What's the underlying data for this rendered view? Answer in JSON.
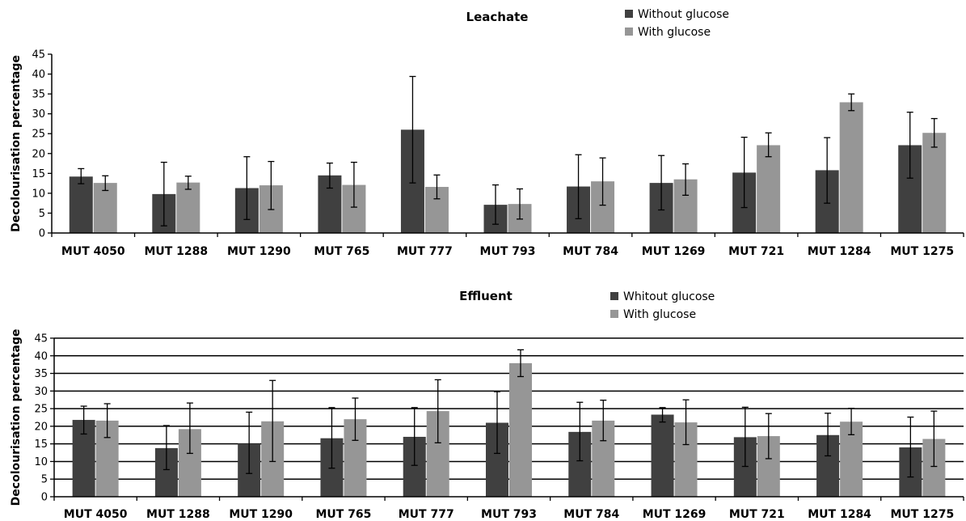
{
  "chart_data": [
    {
      "type": "bar",
      "title": "Leachate",
      "xlabel": "",
      "ylabel": "Decolourisation percentage",
      "ylim": [
        0,
        45
      ],
      "yticks": [
        0,
        5,
        10,
        15,
        20,
        25,
        30,
        35,
        40,
        45
      ],
      "grid": false,
      "legend_position": "top-right",
      "categories": [
        "MUT 4050",
        "MUT 1288",
        "MUT 1290",
        "MUT 765",
        "MUT 777",
        "MUT 793",
        "MUT 784",
        "MUT 1269",
        "MUT 721",
        "MUT 1284",
        "MUT 1275"
      ],
      "series": [
        {
          "name": "Without glucose",
          "color": "#404040",
          "values": [
            14.2,
            9.8,
            11.3,
            14.5,
            26.0,
            7.1,
            11.7,
            12.6,
            15.2,
            15.8,
            22.1
          ],
          "error_bars": [
            [
              12.4,
              16.2
            ],
            [
              1.8,
              17.8
            ],
            [
              3.4,
              19.2
            ],
            [
              11.3,
              17.6
            ],
            [
              12.6,
              39.4
            ],
            [
              2.2,
              12.1
            ],
            [
              3.6,
              19.7
            ],
            [
              5.8,
              19.5
            ],
            [
              6.4,
              24.1
            ],
            [
              7.5,
              24.0
            ],
            [
              13.8,
              30.4
            ]
          ]
        },
        {
          "name": "With glucose",
          "color": "#969696",
          "values": [
            12.6,
            12.7,
            12.0,
            12.1,
            11.6,
            7.3,
            13.0,
            13.5,
            22.1,
            32.9,
            25.2
          ],
          "error_bars": [
            [
              10.7,
              14.4
            ],
            [
              11.0,
              14.3
            ],
            [
              5.9,
              18.0
            ],
            [
              6.5,
              17.8
            ],
            [
              8.6,
              14.6
            ],
            [
              3.5,
              11.1
            ],
            [
              7.0,
              18.9
            ],
            [
              9.5,
              17.4
            ],
            [
              19.2,
              25.2
            ],
            [
              30.8,
              35.0
            ],
            [
              21.6,
              28.8
            ]
          ]
        }
      ]
    },
    {
      "type": "bar",
      "title": "Effluent",
      "xlabel": "",
      "ylabel": "Decolourisation percentage",
      "ylim": [
        0,
        45
      ],
      "yticks": [
        0,
        5,
        10,
        15,
        20,
        25,
        30,
        35,
        40,
        45
      ],
      "grid": true,
      "legend_position": "top-right",
      "categories": [
        "MUT 4050",
        "MUT 1288",
        "MUT 1290",
        "MUT 765",
        "MUT 777",
        "MUT 793",
        "MUT 784",
        "MUT 1269",
        "MUT 721",
        "MUT 1284",
        "MUT 1275"
      ],
      "series": [
        {
          "name": "Whitout glucose",
          "color": "#404040",
          "values": [
            21.8,
            13.8,
            15.1,
            16.6,
            17.0,
            21.0,
            18.4,
            23.3,
            16.9,
            17.5,
            14.0
          ],
          "error_bars": [
            [
              17.8,
              25.7
            ],
            [
              7.7,
              20.2
            ],
            [
              6.6,
              24.0
            ],
            [
              8.1,
              25.3
            ],
            [
              8.9,
              25.3
            ],
            [
              12.3,
              29.8
            ],
            [
              10.2,
              26.8
            ],
            [
              21.2,
              25.3
            ],
            [
              8.6,
              25.4
            ],
            [
              11.6,
              23.7
            ],
            [
              5.6,
              22.6
            ]
          ]
        },
        {
          "name": "With glucose",
          "color": "#969696",
          "values": [
            21.6,
            19.2,
            21.4,
            22.0,
            24.3,
            37.9,
            21.6,
            21.1,
            17.2,
            21.3,
            16.4
          ],
          "error_bars": [
            [
              16.8,
              26.4
            ],
            [
              12.3,
              26.6
            ],
            [
              10.0,
              33.0
            ],
            [
              16.0,
              28.0
            ],
            [
              15.3,
              33.2
            ],
            [
              34.1,
              41.7
            ],
            [
              15.9,
              27.4
            ],
            [
              14.8,
              27.5
            ],
            [
              10.8,
              23.6
            ],
            [
              17.6,
              25.1
            ],
            [
              8.6,
              24.3
            ]
          ]
        }
      ]
    }
  ]
}
